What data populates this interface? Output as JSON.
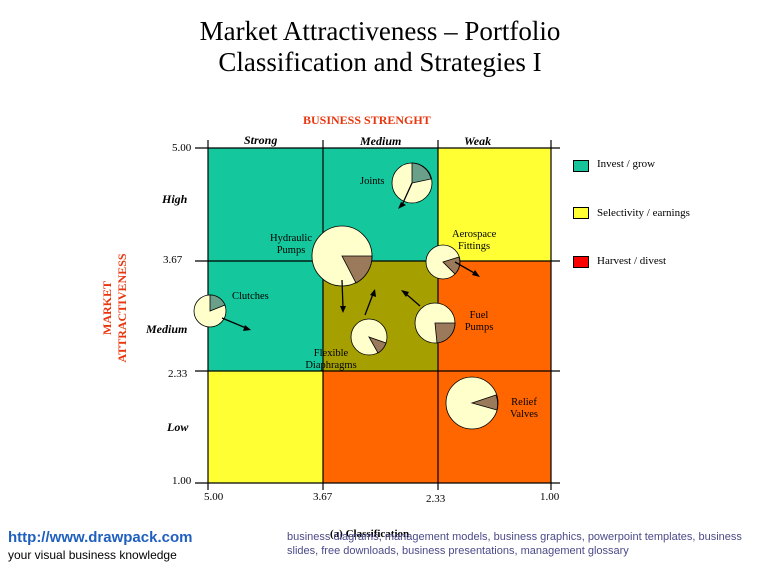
{
  "title": {
    "line1": "Market Attractiveness – Portfolio",
    "line2": "Classification and Strategies I"
  },
  "x_axis": {
    "title": "BUSINESS STRENGHT",
    "categories": [
      "Strong",
      "Medium",
      "Weak"
    ],
    "ticks": [
      "5.00",
      "3.67",
      "2.33",
      "1.00"
    ],
    "caption": "(a) Classification"
  },
  "y_axis": {
    "title_line1": "MARKET",
    "title_line2": "ATTRACTIVENESS",
    "categories": [
      "High",
      "Medium",
      "Low"
    ],
    "ticks": [
      "5.00",
      "3.67",
      "2.33",
      "1.00"
    ]
  },
  "legend": [
    {
      "label": "Invest / grow",
      "color": "#16c39a"
    },
    {
      "label": "Selectivity / earnings",
      "color": "#ffff33"
    },
    {
      "label": "Harvest / divest",
      "color": "#ff0000"
    }
  ],
  "colors": {
    "invest": "#14c79c",
    "selectivity": "#ffff33",
    "harvest": "#ff6600",
    "olive": "#a5a000",
    "pie_main": "#ffffcc",
    "pie_slice_teal": "#6aa08a",
    "pie_slice_brown": "#9a7a5a",
    "footer_link": "#1f5fbf"
  },
  "products": [
    {
      "label_line1": "Joints",
      "label_line2": ""
    },
    {
      "label_line1": "Aerospace",
      "label_line2": "Fittings"
    },
    {
      "label_line1": "Hydraulic",
      "label_line2": "Pumps"
    },
    {
      "label_line1": "Clutches",
      "label_line2": ""
    },
    {
      "label_line1": "Fuel",
      "label_line2": "Pumps"
    },
    {
      "label_line1": "Flexible",
      "label_line2": "Diaphragms"
    },
    {
      "label_line1": "Relief",
      "label_line2": "Valves"
    }
  ],
  "footer": {
    "link": "http://www.drawpack.com",
    "tagline": "your visual business knowledge",
    "tags": "business diagrams, management models, business graphics, powerpoint templates, business slides, free downloads, business presentations, management glossary"
  }
}
